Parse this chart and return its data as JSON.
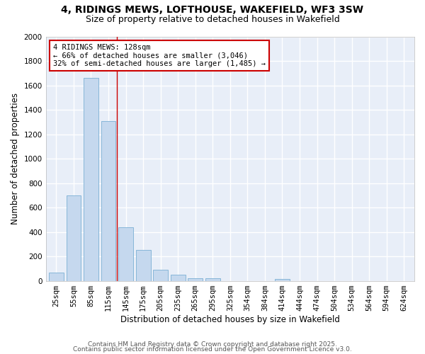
{
  "title_line1": "4, RIDINGS MEWS, LOFTHOUSE, WAKEFIELD, WF3 3SW",
  "title_line2": "Size of property relative to detached houses in Wakefield",
  "xlabel": "Distribution of detached houses by size in Wakefield",
  "ylabel": "Number of detached properties",
  "categories": [
    "25sqm",
    "55sqm",
    "85sqm",
    "115sqm",
    "145sqm",
    "175sqm",
    "205sqm",
    "235sqm",
    "265sqm",
    "295sqm",
    "325sqm",
    "354sqm",
    "384sqm",
    "414sqm",
    "444sqm",
    "474sqm",
    "504sqm",
    "534sqm",
    "564sqm",
    "594sqm",
    "624sqm"
  ],
  "values": [
    65,
    700,
    1660,
    1310,
    440,
    255,
    90,
    50,
    20,
    20,
    0,
    0,
    0,
    15,
    0,
    0,
    0,
    0,
    0,
    0,
    0
  ],
  "bar_color": "#c5d8ee",
  "bar_edge_color": "#7aafd4",
  "background_color": "#e8eef8",
  "grid_color": "#ffffff",
  "vline_x": 3.5,
  "vline_color": "#cc0000",
  "annotation_box_text": "4 RIDINGS MEWS: 128sqm\n← 66% of detached houses are smaller (3,046)\n32% of semi-detached houses are larger (1,485) →",
  "box_edge_color": "#cc0000",
  "ylim": [
    0,
    2000
  ],
  "yticks": [
    0,
    200,
    400,
    600,
    800,
    1000,
    1200,
    1400,
    1600,
    1800,
    2000
  ],
  "footer_line1": "Contains HM Land Registry data © Crown copyright and database right 2025.",
  "footer_line2": "Contains public sector information licensed under the Open Government Licence v3.0.",
  "title_fontsize": 10,
  "subtitle_fontsize": 9,
  "axis_label_fontsize": 8.5,
  "tick_fontsize": 7.5,
  "annotation_fontsize": 7.5,
  "footer_fontsize": 6.5
}
